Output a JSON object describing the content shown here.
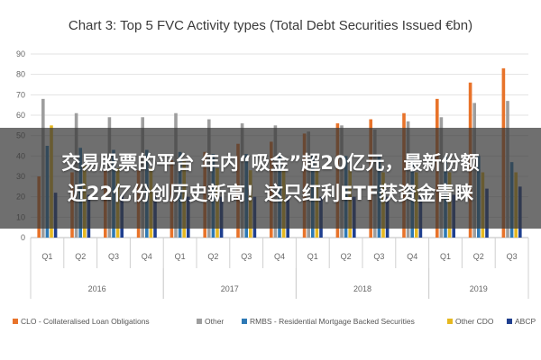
{
  "chart_data": {
    "type": "bar",
    "title": "Chart 3: Top 5 FVC Activity types (Total Debt Securities Issued €bn)",
    "categories": [
      "Q1",
      "Q2",
      "Q3",
      "Q4",
      "Q1",
      "Q2",
      "Q3",
      "Q4",
      "Q1",
      "Q2",
      "Q3",
      "Q4",
      "Q1",
      "Q2",
      "Q3"
    ],
    "years": [
      {
        "label": "2016",
        "start": 0,
        "end": 3
      },
      {
        "label": "2017",
        "start": 4,
        "end": 7
      },
      {
        "label": "2018",
        "start": 8,
        "end": 11
      },
      {
        "label": "2019",
        "start": 12,
        "end": 14
      }
    ],
    "ylim": [
      0,
      90
    ],
    "yticks": [
      0,
      10,
      20,
      30,
      40,
      50,
      60,
      70,
      80,
      90
    ],
    "grid": true,
    "legend_position": "bottom",
    "series": [
      {
        "name": "CLO - Collateralised Loan Obligations",
        "color": "#e8732a",
        "values": [
          30,
          32,
          33,
          33,
          38,
          42,
          46,
          47,
          51,
          56,
          58,
          61,
          68,
          76,
          83
        ]
      },
      {
        "name": "Other",
        "color": "#9e9e9e",
        "values": [
          68,
          61,
          59,
          59,
          61,
          58,
          56,
          55,
          52,
          55,
          53,
          57,
          59,
          66,
          67
        ]
      },
      {
        "name": "RMBS - Residential Mortgage Backed Securities",
        "color": "#2e79b5",
        "values": [
          45,
          44,
          43,
          43,
          42,
          41,
          41,
          41,
          40,
          40,
          40,
          40,
          40,
          40,
          37
        ]
      },
      {
        "name": "Other CDO",
        "color": "#e6b820",
        "values": [
          55,
          35,
          34,
          34,
          38,
          34,
          33,
          33,
          33,
          33,
          32,
          32,
          32,
          32,
          32
        ]
      },
      {
        "name": "ABCP",
        "color": "#1f3f8f",
        "values": [
          22,
          21,
          21,
          20,
          20,
          20,
          20,
          20,
          20,
          20,
          20,
          20,
          21,
          24,
          25
        ]
      }
    ]
  },
  "overlay": {
    "line1": "交易股票的平台 年内“吸金”超20亿元，最新份额",
    "line2": "近22亿份创历史新高！这只红利ETF获资金青睐"
  }
}
